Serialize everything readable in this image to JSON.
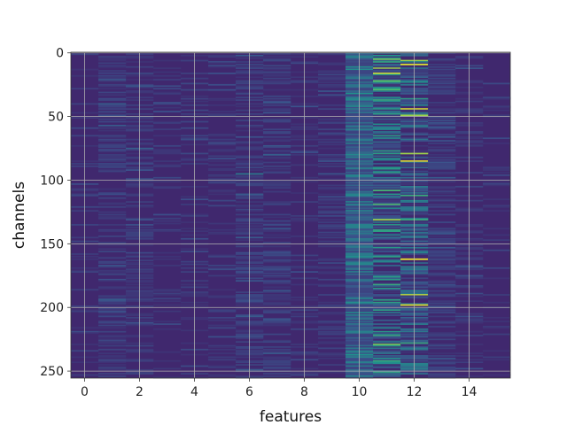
{
  "chart_data": {
    "type": "heatmap",
    "title": "",
    "xlabel": "features",
    "ylabel": "channels",
    "n_features": 16,
    "n_channels": 256,
    "xlim": [
      -0.5,
      15.5
    ],
    "ylim": [
      255.5,
      -0.5
    ],
    "x_ticks": [
      "0",
      "2",
      "4",
      "6",
      "8",
      "10",
      "12",
      "14"
    ],
    "x_tick_values": [
      0,
      2,
      4,
      6,
      8,
      10,
      12,
      14
    ],
    "y_ticks": [
      "0",
      "50",
      "100",
      "150",
      "200",
      "250"
    ],
    "y_tick_values": [
      0,
      50,
      100,
      150,
      200,
      250
    ],
    "grid": true,
    "colormap": "viridis",
    "background_value": 0.12,
    "column_profiles": [
      {
        "feature": 0,
        "base": 0.1,
        "spread": 0.06
      },
      {
        "feature": 1,
        "base": 0.12,
        "spread": 0.1
      },
      {
        "feature": 2,
        "base": 0.11,
        "spread": 0.09
      },
      {
        "feature": 3,
        "base": 0.1,
        "spread": 0.07
      },
      {
        "feature": 4,
        "base": 0.1,
        "spread": 0.06
      },
      {
        "feature": 5,
        "base": 0.1,
        "spread": 0.07
      },
      {
        "feature": 6,
        "base": 0.12,
        "spread": 0.1
      },
      {
        "feature": 7,
        "base": 0.12,
        "spread": 0.1
      },
      {
        "feature": 8,
        "base": 0.1,
        "spread": 0.07
      },
      {
        "feature": 9,
        "base": 0.11,
        "spread": 0.08
      },
      {
        "feature": 10,
        "base": 0.2,
        "spread": 0.3
      },
      {
        "feature": 11,
        "base": 0.12,
        "spread": 0.45
      },
      {
        "feature": 12,
        "base": 0.1,
        "spread": 0.35
      },
      {
        "feature": 13,
        "base": 0.12,
        "spread": 0.1
      },
      {
        "feature": 14,
        "base": 0.11,
        "spread": 0.08
      },
      {
        "feature": 15,
        "base": 0.1,
        "spread": 0.06
      }
    ],
    "highlights": [
      {
        "feature": 11,
        "channel": 5,
        "value": 0.8
      },
      {
        "feature": 11,
        "channel": 12,
        "value": 0.85
      },
      {
        "feature": 11,
        "channel": 16,
        "value": 0.95
      },
      {
        "feature": 11,
        "channel": 22,
        "value": 0.75
      },
      {
        "feature": 11,
        "channel": 29,
        "value": 0.7
      },
      {
        "feature": 11,
        "channel": 37,
        "value": 0.6
      },
      {
        "feature": 11,
        "channel": 48,
        "value": 0.55
      },
      {
        "feature": 11,
        "channel": 56,
        "value": 0.5
      },
      {
        "feature": 11,
        "channel": 65,
        "value": 0.55
      },
      {
        "feature": 11,
        "channel": 108,
        "value": 0.65
      },
      {
        "feature": 11,
        "channel": 119,
        "value": 0.7
      },
      {
        "feature": 11,
        "channel": 131,
        "value": 0.85
      },
      {
        "feature": 11,
        "channel": 160,
        "value": 0.55
      },
      {
        "feature": 11,
        "channel": 182,
        "value": 0.6
      },
      {
        "feature": 11,
        "channel": 202,
        "value": 0.55
      },
      {
        "feature": 11,
        "channel": 222,
        "value": 0.6
      },
      {
        "feature": 11,
        "channel": 229,
        "value": 0.8
      },
      {
        "feature": 11,
        "channel": 242,
        "value": 0.6
      },
      {
        "feature": 12,
        "channel": 6,
        "value": 0.85
      },
      {
        "feature": 12,
        "channel": 9,
        "value": 0.95
      },
      {
        "feature": 12,
        "channel": 23,
        "value": 0.5
      },
      {
        "feature": 12,
        "channel": 36,
        "value": 0.55
      },
      {
        "feature": 12,
        "channel": 44,
        "value": 0.95
      },
      {
        "feature": 12,
        "channel": 49,
        "value": 0.85
      },
      {
        "feature": 12,
        "channel": 79,
        "value": 0.85
      },
      {
        "feature": 12,
        "channel": 85,
        "value": 0.98
      },
      {
        "feature": 12,
        "channel": 112,
        "value": 0.6
      },
      {
        "feature": 12,
        "channel": 131,
        "value": 0.6
      },
      {
        "feature": 12,
        "channel": 162,
        "value": 0.98
      },
      {
        "feature": 12,
        "channel": 190,
        "value": 0.9
      },
      {
        "feature": 12,
        "channel": 198,
        "value": 0.95
      },
      {
        "feature": 12,
        "channel": 228,
        "value": 0.6
      },
      {
        "feature": 10,
        "channel": 30,
        "value": 0.35
      },
      {
        "feature": 10,
        "channel": 85,
        "value": 0.4
      },
      {
        "feature": 10,
        "channel": 170,
        "value": 0.4
      },
      {
        "feature": 10,
        "channel": 197,
        "value": 0.4
      },
      {
        "feature": 6,
        "channel": 95,
        "value": 0.4
      },
      {
        "feature": 2,
        "channel": 75,
        "value": 0.3
      }
    ]
  }
}
